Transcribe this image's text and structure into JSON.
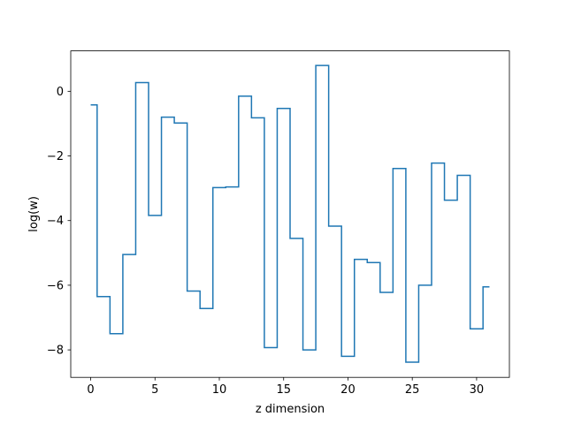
{
  "chart_data": {
    "type": "line",
    "drawstyle": "steps-mid",
    "xlabel": "z dimension",
    "ylabel": "log(w)",
    "xlim": [
      -1.55,
      32.55
    ],
    "ylim": [
      -8.85,
      1.25
    ],
    "xticks": [
      0,
      5,
      10,
      15,
      20,
      25,
      30
    ],
    "yticks": [
      0,
      -2,
      -4,
      -6,
      -8
    ],
    "ytick_labels": [
      "0",
      "−2",
      "−4",
      "−6",
      "−8"
    ],
    "grid": false,
    "series": [
      {
        "color": "#1f77b4",
        "x": [
          0,
          1,
          2,
          3,
          4,
          5,
          6,
          7,
          8,
          9,
          10,
          11,
          12,
          13,
          14,
          15,
          16,
          17,
          18,
          19,
          20,
          21,
          22,
          23,
          24,
          25,
          26,
          27,
          28,
          29,
          30,
          31
        ],
        "values": [
          -0.42,
          -6.35,
          -7.5,
          -5.05,
          0.27,
          -3.84,
          -0.8,
          -0.98,
          -6.18,
          -6.72,
          -2.98,
          -2.96,
          -0.15,
          -0.82,
          -7.93,
          -0.53,
          -4.55,
          -8.0,
          0.8,
          -4.17,
          -8.2,
          -5.2,
          -5.3,
          -6.22,
          -2.39,
          -8.38,
          -6.0,
          -2.22,
          -3.37,
          -2.6,
          -7.35,
          -6.05
        ]
      }
    ]
  }
}
